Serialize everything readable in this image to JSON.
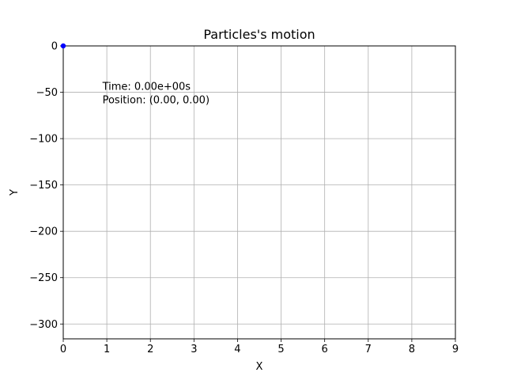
{
  "chart_data": {
    "type": "scatter",
    "title": "Particles's motion",
    "xlabel": "X",
    "ylabel": "Y",
    "xlim": [
      0,
      9
    ],
    "ylim": [
      -316,
      0
    ],
    "xticks": [
      0,
      1,
      2,
      3,
      4,
      5,
      6,
      7,
      8,
      9
    ],
    "xtick_labels": [
      "0",
      "1",
      "2",
      "3",
      "4",
      "5",
      "6",
      "7",
      "8",
      "9"
    ],
    "yticks": [
      0,
      -50,
      -100,
      -150,
      -200,
      -250,
      -300
    ],
    "ytick_labels": [
      "0",
      "−50",
      "−100",
      "−150",
      "−200",
      "−250",
      "−300"
    ],
    "grid": true,
    "points": [
      {
        "x": 0.0,
        "y": 0.0
      }
    ],
    "point_color": "#0000ff",
    "grid_color": "#b0b0b0",
    "annotation": {
      "time_text": "Time: 0.00e+00s",
      "position_text": "Position: (0.00, 0.00)"
    }
  }
}
